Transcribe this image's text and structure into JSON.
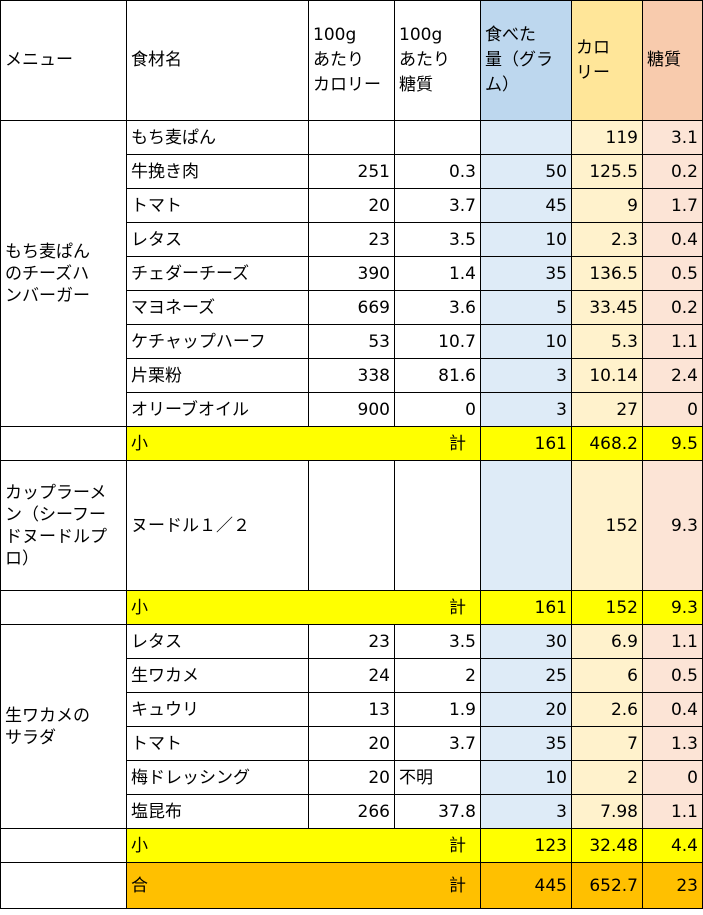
{
  "header": {
    "menu": "メニュー",
    "ingredient": "食材名",
    "cal_per100": "100g\nあたり\nカロリー",
    "sugar_per100": "100g\nあたり\n糖質",
    "eaten": "食べた\n量（グラ\nム）",
    "calorie": "カロ\nリー",
    "sugar": "糖質"
  },
  "sections": [
    {
      "menu": "もち麦ぱん\nのチーズハ\nンバーガー",
      "rows": [
        {
          "name": "もち麦ぱん",
          "c100": "",
          "s100": "",
          "grams": "",
          "cal": "119",
          "sug": "3.1"
        },
        {
          "name": "牛挽き肉",
          "c100": "251",
          "s100": "0.3",
          "grams": "50",
          "cal": "125.5",
          "sug": "0.2"
        },
        {
          "name": "トマト",
          "c100": "20",
          "s100": "3.7",
          "grams": "45",
          "cal": "9",
          "sug": "1.7"
        },
        {
          "name": "レタス",
          "c100": "23",
          "s100": "3.5",
          "grams": "10",
          "cal": "2.3",
          "sug": "0.4"
        },
        {
          "name": "チェダーチーズ",
          "c100": "390",
          "s100": "1.4",
          "grams": "35",
          "cal": "136.5",
          "sug": "0.5"
        },
        {
          "name": "マヨネーズ",
          "c100": "669",
          "s100": "3.6",
          "grams": "5",
          "cal": "33.45",
          "sug": "0.2"
        },
        {
          "name": "ケチャップハーフ",
          "c100": "53",
          "s100": "10.7",
          "grams": "10",
          "cal": "5.3",
          "sug": "1.1"
        },
        {
          "name": "片栗粉",
          "c100": "338",
          "s100": "81.6",
          "grams": "3",
          "cal": "10.14",
          "sug": "2.4"
        },
        {
          "name": "オリーブオイル",
          "c100": "900",
          "s100": "0",
          "grams": "3",
          "cal": "27",
          "sug": "0"
        }
      ],
      "subtotal": {
        "label_a": "小",
        "label_b": "計",
        "grams": "161",
        "cal": "468.2",
        "sug": "9.5"
      }
    },
    {
      "menu": "カップラーメ\nン（シーフー\nドヌードルプ\nロ）",
      "rows": [
        {
          "name": "ヌードル１／２",
          "c100": "",
          "s100": "",
          "grams": "",
          "cal": "152",
          "sug": "9.3"
        }
      ],
      "subtotal": {
        "label_a": "小",
        "label_b": "計",
        "grams": "161",
        "cal": "152",
        "sug": "9.3"
      }
    },
    {
      "menu": "生ワカメの\nサラダ",
      "rows": [
        {
          "name": "レタス",
          "c100": "23",
          "s100": "3.5",
          "grams": "30",
          "cal": "6.9",
          "sug": "1.1"
        },
        {
          "name": "生ワカメ",
          "c100": "24",
          "s100": "2",
          "grams": "25",
          "cal": "6",
          "sug": "0.5"
        },
        {
          "name": "キュウリ",
          "c100": "13",
          "s100": "1.9",
          "grams": "20",
          "cal": "2.6",
          "sug": "0.4"
        },
        {
          "name": "トマト",
          "c100": "20",
          "s100": "3.7",
          "grams": "35",
          "cal": "7",
          "sug": "1.3"
        },
        {
          "name": "梅ドレッシング",
          "c100": "20",
          "s100": "不明",
          "grams": "10",
          "cal": "2",
          "sug": "0"
        },
        {
          "name": "塩昆布",
          "c100": "266",
          "s100": "37.8",
          "grams": "3",
          "cal": "7.98",
          "sug": "1.1"
        }
      ],
      "subtotal": {
        "label_a": "小",
        "label_b": "計",
        "grams": "123",
        "cal": "32.48",
        "sug": "4.4"
      }
    }
  ],
  "total": {
    "label_a": "合",
    "label_b": "計",
    "grams": "445",
    "cal": "652.7",
    "sug": "23"
  },
  "colors": {
    "eaten_header": "#bdd7ee",
    "eaten_cell": "#deebf7",
    "calorie_header": "#ffe699",
    "calorie_cell": "#fff2cc",
    "sugar_header": "#f8cbad",
    "sugar_cell": "#fce4d6",
    "subtotal": "#ffff00",
    "total": "#ffc000"
  }
}
